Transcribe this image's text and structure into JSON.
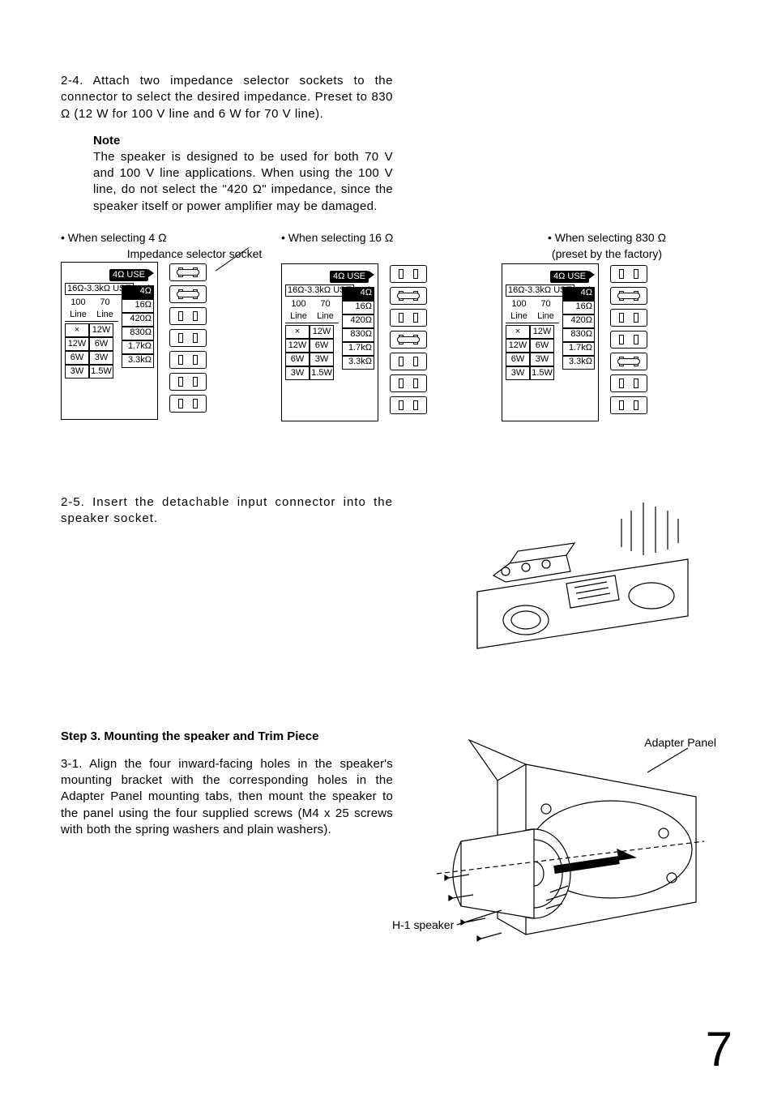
{
  "section_2_4": {
    "num": "2-4.",
    "text": "Attach two impedance selector sockets to the connector to select the desired impedance. Preset to 830 Ω (12 W for 100 V line and 6 W for 70 V line).",
    "note_title": "Note",
    "note_text": "The speaker is designed to be used for both 70 V and 100 V line applications. When using the 100 V line, do not select the \"420 Ω\" impedance, since the speaker itself or power amplifier may be damaged."
  },
  "selectors": {
    "iss_label": "Impedance selector socket",
    "col1_caption": "• When selecting 4 Ω",
    "col2_caption": "• When selecting 16 Ω",
    "col3_caption": "• When selecting 830 Ω",
    "col3_sub": "(preset by the factory)",
    "panel": {
      "use4": "4Ω USE",
      "use16": "16Ω-3.3kΩ USE",
      "hdr100": "100",
      "hdr70": "70",
      "hdrLine": "Line",
      "r_vals": [
        "4Ω",
        "16Ω",
        "420Ω",
        "830Ω",
        "1.7kΩ",
        "3.3kΩ"
      ],
      "l_rows": [
        [
          "×",
          "12W"
        ],
        [
          "12W",
          "6W"
        ],
        [
          "6W",
          "3W"
        ],
        [
          "3W",
          "1.5W"
        ]
      ]
    },
    "bridged_indices": {
      "col1": [
        0,
        1
      ],
      "col2": [
        1,
        3
      ],
      "col3": [
        1,
        4
      ]
    }
  },
  "section_2_5": {
    "num": "2-5.",
    "text": "Insert the detachable input connector into the speaker socket."
  },
  "step3_title": "Step 3. Mounting the speaker and Trim Piece",
  "section_3_1": {
    "num": "3-1.",
    "text": "Align the four inward-facing holes in the speaker's mounting bracket with the corresponding holes in the Adapter Panel mounting tabs, then mount the speaker to the panel using the four supplied screws (M4 x 25 screws with both the spring washers and plain washers).",
    "label_adapter": "Adapter Panel",
    "label_speaker": "H-1 speaker"
  },
  "page_number": "7"
}
